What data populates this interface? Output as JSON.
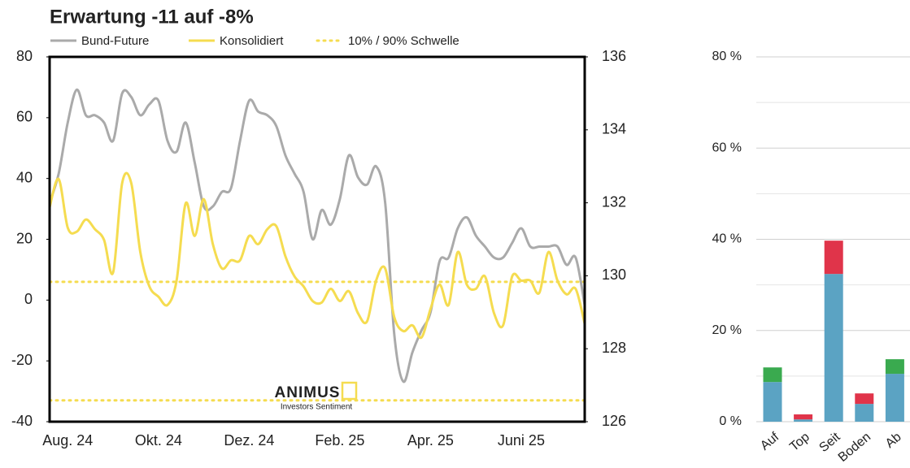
{
  "chart_data": [
    {
      "type": "line",
      "title": "Erwartung -11 auf -8%",
      "categories": [
        null,
        null,
        "Aug. 24",
        null,
        null,
        null,
        null,
        null,
        null,
        null,
        null,
        null,
        "Okt. 24",
        null,
        null,
        null,
        null,
        null,
        null,
        null,
        null,
        null,
        "Dez. 24",
        null,
        null,
        null,
        null,
        null,
        null,
        null,
        null,
        null,
        "Feb. 25",
        null,
        null,
        null,
        null,
        null,
        null,
        null,
        null,
        null,
        "Apr. 25",
        null,
        null,
        null,
        null,
        null,
        null,
        null,
        null,
        null,
        "Juni 25",
        null,
        null,
        null,
        null,
        null,
        null,
        null
      ],
      "series": [
        {
          "name": "Bund-Future",
          "color": "#aaaaaa",
          "axis": "y2",
          "values": [
            132.0,
            132.8,
            134.2,
            135.1,
            134.4,
            134.4,
            134.2,
            133.7,
            135.0,
            134.9,
            134.4,
            134.7,
            134.8,
            133.7,
            133.4,
            134.2,
            133.1,
            131.9,
            131.9,
            132.3,
            132.4,
            133.7,
            134.8,
            134.5,
            134.4,
            134.1,
            133.3,
            132.8,
            132.3,
            131.0,
            131.8,
            131.4,
            132.1,
            133.3,
            132.7,
            132.5,
            133.0,
            132.0,
            128.4,
            127.1,
            127.9,
            128.5,
            129.0,
            130.4,
            130.5,
            131.3,
            131.6,
            131.1,
            130.8,
            130.5,
            130.5,
            130.9,
            131.3,
            130.8,
            130.8,
            130.8,
            130.8,
            130.3,
            130.5,
            129.2
          ]
        },
        {
          "name": "Konsolidiert",
          "color": "#f5dc50",
          "values": [
            30.5,
            39.8,
            23.8,
            22.5,
            26.5,
            23.3,
            19.8,
            9.1,
            38.5,
            38.5,
            15.8,
            4.5,
            1.1,
            -1.6,
            6.4,
            31.8,
            21.1,
            33.2,
            18.4,
            10.4,
            13.1,
            13.1,
            21.1,
            18.4,
            23.3,
            24.3,
            14.4,
            7.8,
            4.5,
            -0.3,
            -0.8,
            3.7,
            -0.3,
            2.9,
            -4.3,
            -7.0,
            6.4,
            10.4,
            -5.6,
            -10.2,
            -8.3,
            -12.3,
            -2.9,
            5.1,
            -1.6,
            15.8,
            5.1,
            3.7,
            7.8,
            -4.3,
            -8.3,
            7.8,
            6.4,
            6.4,
            2.4,
            15.8,
            6.4,
            1.9,
            3.7,
            -7.8
          ]
        }
      ],
      "thresholds": {
        "name": "10% / 90% Schwelle",
        "color": "#f5dc50",
        "values": [
          6,
          -33
        ]
      },
      "ylim": [
        -40,
        80
      ],
      "yticks": [
        -40,
        -20,
        0,
        20,
        40,
        60,
        80
      ],
      "y2lim": [
        126,
        136
      ],
      "y2ticks": [
        126,
        128,
        130,
        132,
        134,
        136
      ],
      "grid": false,
      "legend": "top",
      "watermark": {
        "brand": "ANIMUS",
        "tagline": "Investors Sentiment"
      }
    },
    {
      "type": "stacked_bar",
      "categories": [
        "Auf",
        "Top",
        "Seit",
        "Boden",
        "Ab"
      ],
      "series": [
        {
          "color": "#5ba3c3",
          "values": [
            8.7,
            0.5,
            32.4,
            3.9,
            10.5
          ]
        },
        {
          "color": "#3aaa4f",
          "values": [
            3.2,
            null,
            null,
            null,
            3.2
          ]
        },
        {
          "color": "#e0344a",
          "values": [
            null,
            1.1,
            7.3,
            2.3,
            null
          ]
        }
      ],
      "ylim": [
        0,
        80
      ],
      "yticks": [
        {
          "value": 0,
          "label": "0 %"
        },
        {
          "value": 20,
          "label": "20 %"
        },
        {
          "value": 40,
          "label": "40 %"
        },
        {
          "value": 60,
          "label": "60 %"
        },
        {
          "value": 80,
          "label": "80 %"
        }
      ],
      "minor_yticks": [
        10,
        30,
        50,
        70
      ],
      "grid": true
    }
  ]
}
